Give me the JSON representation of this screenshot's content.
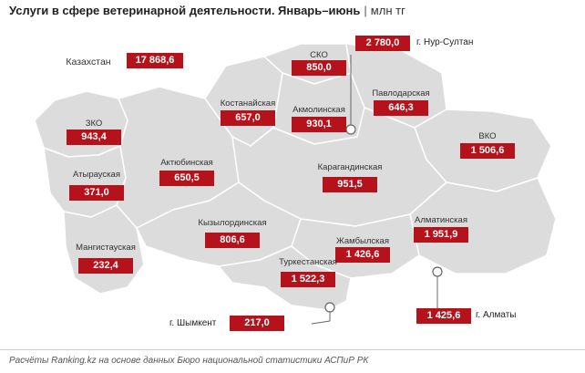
{
  "title": {
    "main": "Услуги в сфере ветеринарной деятельности. Январь–июнь",
    "separator": "|",
    "unit": "млн тг"
  },
  "total": {
    "label": "Казахстан",
    "value": "17 868,6"
  },
  "regions": [
    {
      "id": "sko",
      "label": "СКО",
      "value": "850,0"
    },
    {
      "id": "kostanay",
      "label": "Костанайская",
      "value": "657,0"
    },
    {
      "id": "akmola",
      "label": "Акмолинская",
      "value": "930,1"
    },
    {
      "id": "pavlodar",
      "label": "Павлодарская",
      "value": "646,3"
    },
    {
      "id": "zko",
      "label": "ЗКО",
      "value": "943,4"
    },
    {
      "id": "vko",
      "label": "ВКО",
      "value": "1 506,6"
    },
    {
      "id": "atyrau",
      "label": "Атырауская",
      "value": "371,0"
    },
    {
      "id": "aktobe",
      "label": "Актюбинская",
      "value": "650,5"
    },
    {
      "id": "karaganda",
      "label": "Карагандинская",
      "value": "951,5"
    },
    {
      "id": "kyzylorda",
      "label": "Кызылординская",
      "value": "806,6"
    },
    {
      "id": "almaty_reg",
      "label": "Алматинская",
      "value": "1 951,9"
    },
    {
      "id": "mangystau",
      "label": "Мангистауская",
      "value": "232,4"
    },
    {
      "id": "zhambyl",
      "label": "Жамбылская",
      "value": "1 426,6"
    },
    {
      "id": "turkestan",
      "label": "Туркестанская",
      "value": "1 522,3"
    }
  ],
  "cities": [
    {
      "id": "nur_sultan",
      "label": "г. Нур-Султан",
      "value": "2 780,0"
    },
    {
      "id": "shymkent",
      "label": "г. Шымкент",
      "value": "217,0"
    },
    {
      "id": "almaty",
      "label": "г. Алматы",
      "value": "1 425,6"
    }
  ],
  "source": "Расчёты Ranking.kz на основе данных Бюро национальной статистики АСПиР РК",
  "colors": {
    "region_fill": "#dcdcdc",
    "border": "#ffffff",
    "value_bg": "#b5121b"
  }
}
